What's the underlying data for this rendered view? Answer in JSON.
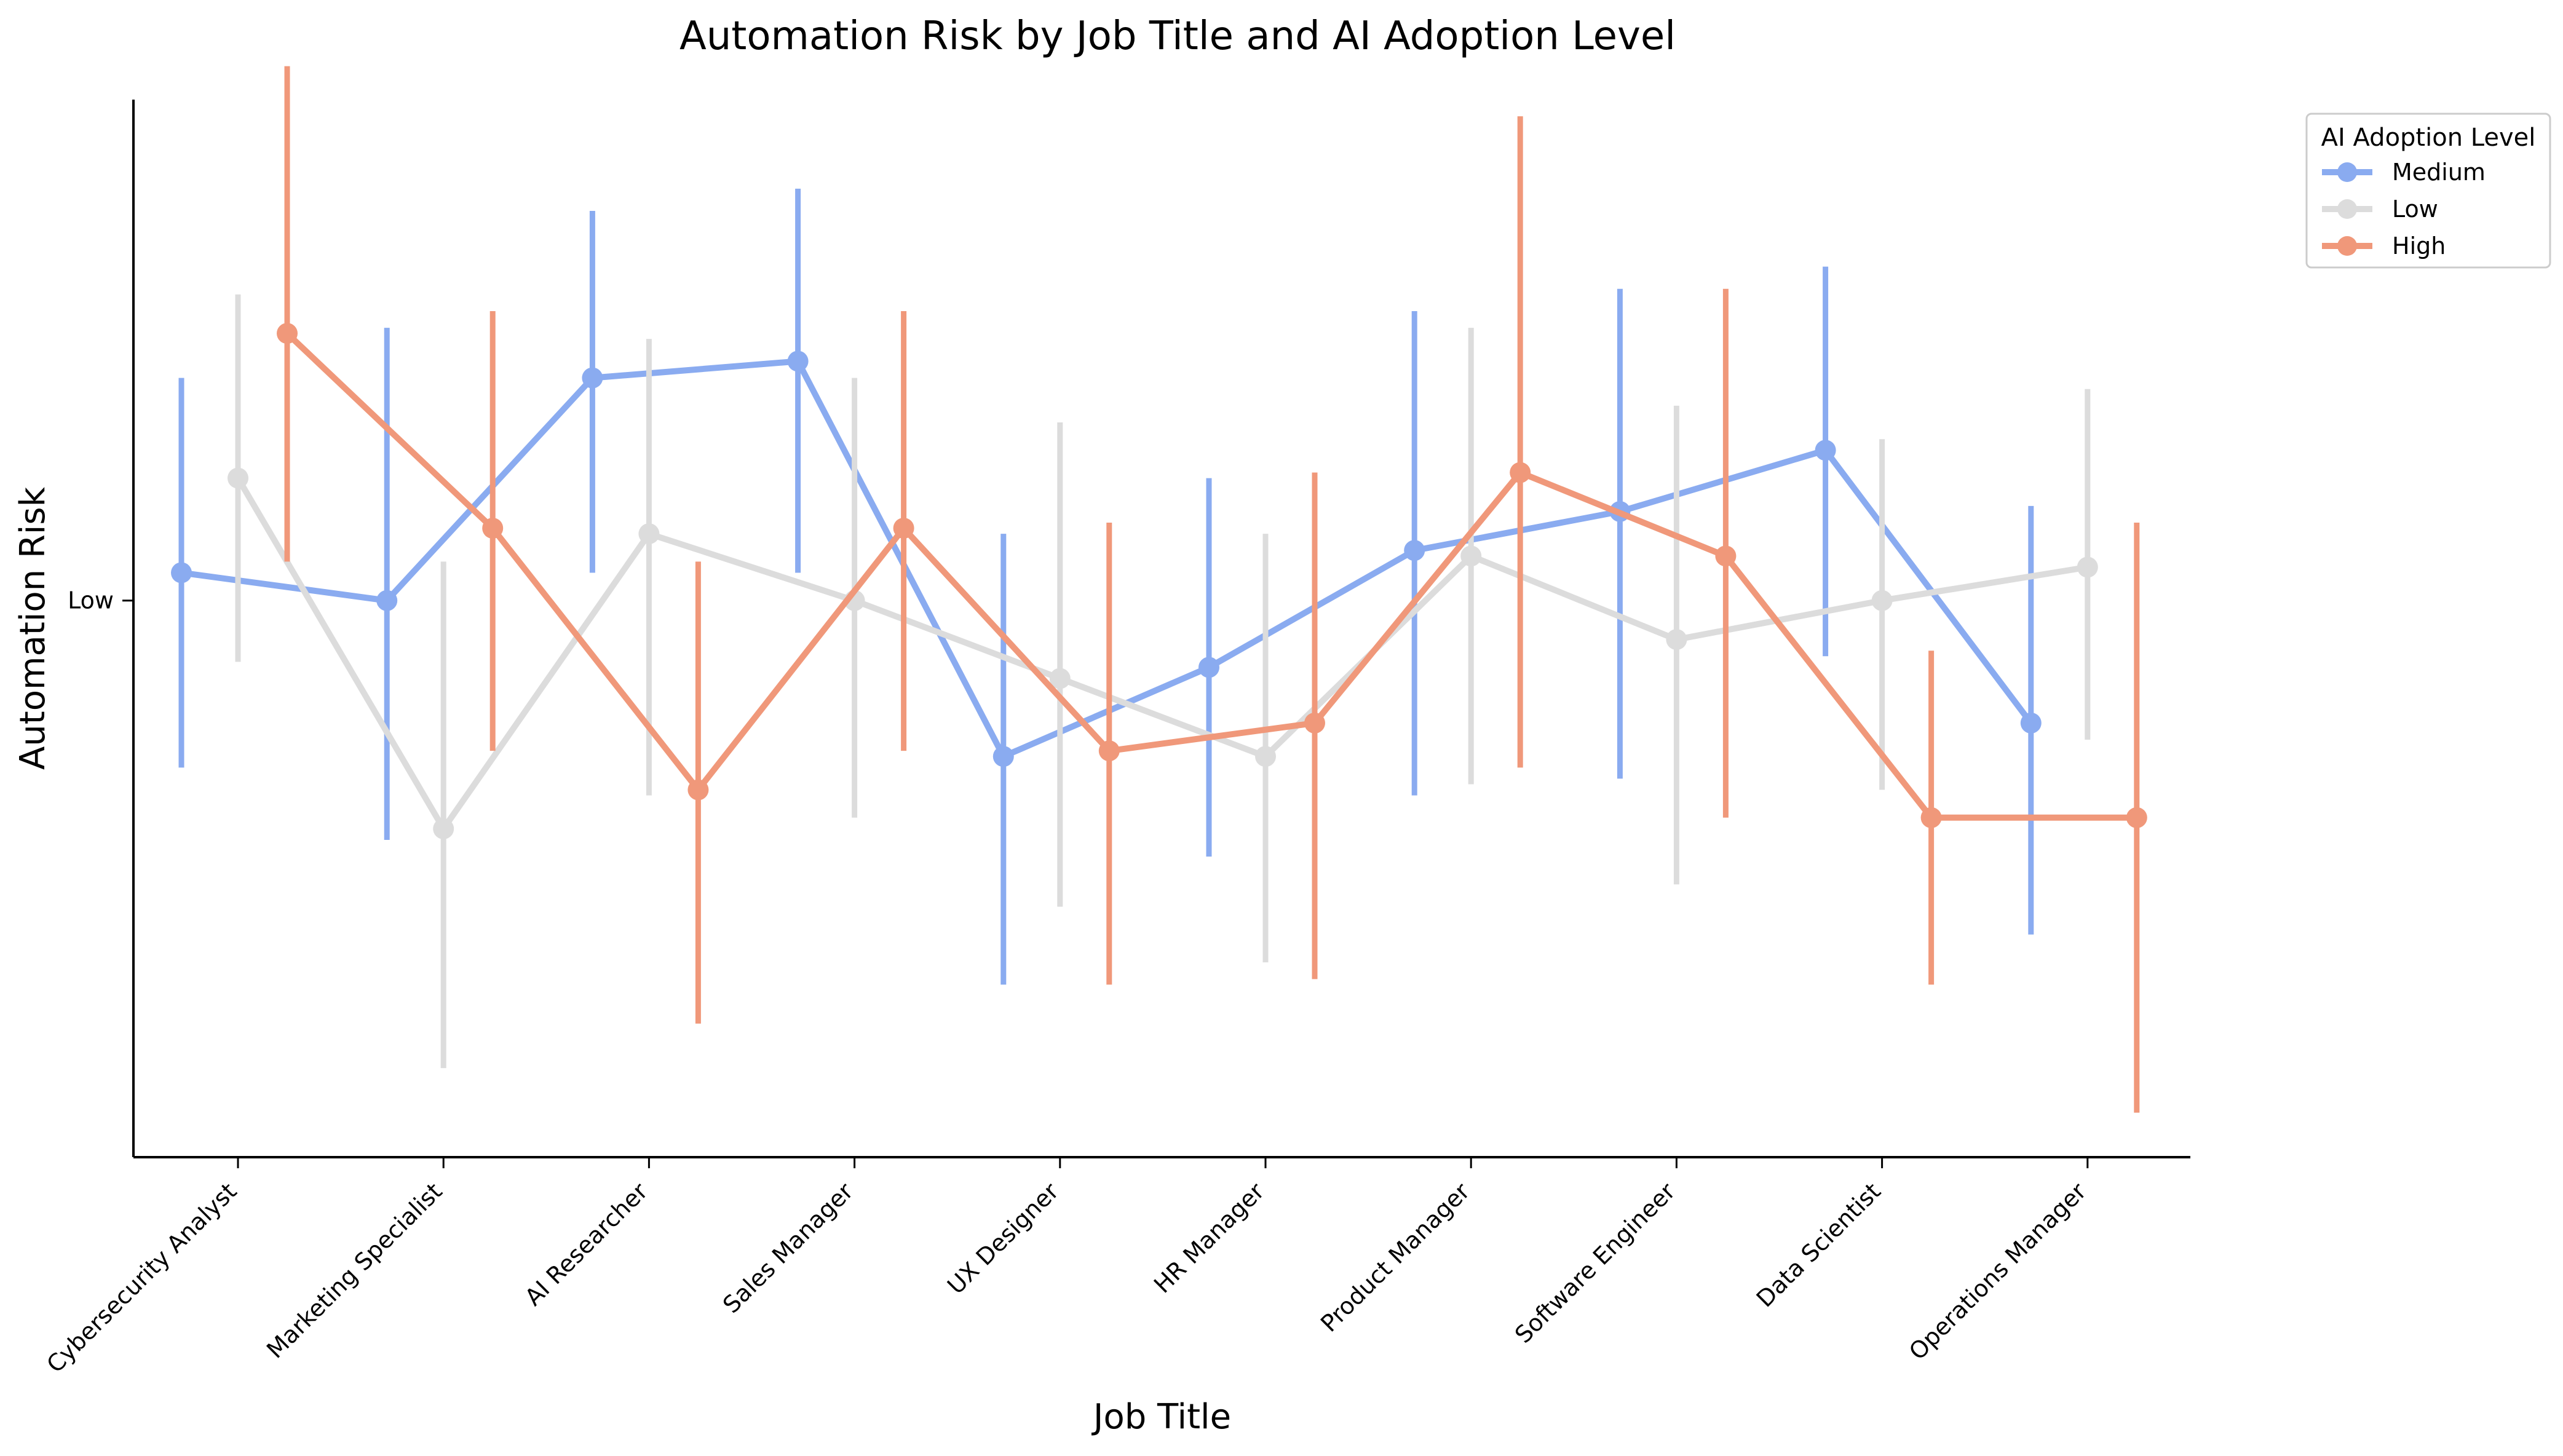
{
  "chart_data": {
    "type": "line",
    "title": "Automation Risk by Job Title and AI Adoption Level",
    "xlabel": "Job Title",
    "ylabel": "Automation Risk",
    "categories": [
      "Cybersecurity Analyst",
      "Marketing Specialist",
      "AI Researcher",
      "Sales Manager",
      "UX Designer",
      "HR Manager",
      "Product Manager",
      "Software Engineer",
      "Data Scientist",
      "Operations Manager"
    ],
    "y_tick_labels": [
      {
        "value": 1.0,
        "label": "Low"
      }
    ],
    "ylim": [
      0.0,
      1.9
    ],
    "grid": false,
    "legend": {
      "title": "AI Adoption Level",
      "placement": "upper right, outside plot area"
    },
    "series": [
      {
        "name": "Medium",
        "color": "#8aabf0",
        "values": [
          1.05,
          1.0,
          1.4,
          1.43,
          0.72,
          0.88,
          1.09,
          1.16,
          1.27,
          0.78
        ],
        "ci_low": [
          0.7,
          0.57,
          1.05,
          1.05,
          0.31,
          0.54,
          0.65,
          0.68,
          0.9,
          0.4
        ],
        "ci_high": [
          1.4,
          1.49,
          1.7,
          1.74,
          1.12,
          1.22,
          1.52,
          1.56,
          1.6,
          1.17
        ]
      },
      {
        "name": "Low",
        "color": "#dcdcdc",
        "values": [
          1.22,
          0.59,
          1.12,
          1.0,
          0.86,
          0.72,
          1.08,
          0.93,
          1.0,
          1.06
        ],
        "ci_low": [
          0.89,
          0.16,
          0.65,
          0.61,
          0.45,
          0.35,
          0.67,
          0.49,
          0.66,
          0.75
        ],
        "ci_high": [
          1.55,
          1.07,
          1.47,
          1.4,
          1.32,
          1.12,
          1.49,
          1.35,
          1.29,
          1.38
        ]
      },
      {
        "name": "High",
        "color": "#f0987a",
        "values": [
          1.48,
          1.13,
          0.66,
          1.13,
          0.73,
          0.78,
          1.23,
          1.08,
          0.61,
          0.61
        ],
        "ci_low": [
          1.07,
          0.73,
          0.24,
          0.73,
          0.31,
          0.32,
          0.7,
          0.61,
          0.31,
          0.08
        ],
        "ci_high": [
          1.96,
          1.52,
          1.07,
          1.52,
          1.14,
          1.23,
          1.87,
          1.56,
          0.91,
          1.14
        ]
      }
    ]
  }
}
